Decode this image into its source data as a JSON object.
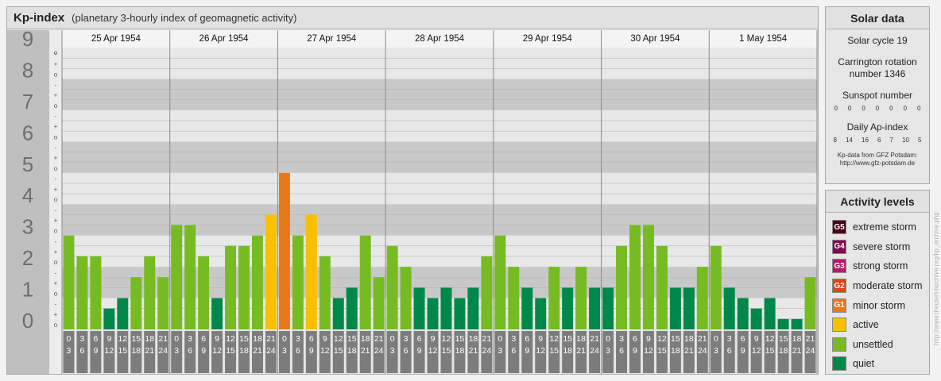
{
  "header": {
    "title": "Kp-index",
    "subtitle": "(planetary 3-hourly index of geomagnetic activity)"
  },
  "chart_data": {
    "type": "bar",
    "title": "Kp-index",
    "subtitle": "(planetary 3-hourly index of geomagnetic activity)",
    "ylim": [
      0,
      9
    ],
    "y_ticks": [
      "0",
      "1",
      "2",
      "3",
      "4",
      "5",
      "6",
      "7",
      "8",
      "9"
    ],
    "minor_labels": [
      "o",
      "+",
      "-"
    ],
    "days": [
      "25 Apr 1954",
      "26 Apr 1954",
      "27 Apr 1954",
      "28 Apr 1954",
      "29 Apr 1954",
      "30 Apr 1954",
      "1 May 1954"
    ],
    "intervals_top": [
      "0",
      "3",
      "6",
      "9",
      "12",
      "15",
      "18",
      "21"
    ],
    "intervals_bottom": [
      "3",
      "6",
      "9",
      "12",
      "15",
      "18",
      "21",
      "24"
    ],
    "values": [
      [
        3.0,
        2.333,
        2.333,
        0.667,
        1.0,
        1.667,
        2.333,
        1.667
      ],
      [
        3.333,
        3.333,
        2.333,
        1.0,
        2.667,
        2.667,
        3.0,
        3.667
      ],
      [
        5.0,
        3.0,
        3.667,
        2.333,
        1.0,
        1.333,
        3.0,
        1.667
      ],
      [
        2.667,
        2.0,
        1.333,
        1.0,
        1.333,
        1.0,
        1.333,
        2.333
      ],
      [
        3.0,
        2.0,
        1.333,
        1.0,
        2.0,
        1.333,
        2.0,
        1.333
      ],
      [
        1.333,
        2.667,
        3.333,
        3.333,
        2.667,
        1.333,
        1.333,
        2.0
      ],
      [
        2.667,
        1.333,
        1.0,
        0.667,
        1.0,
        0.333,
        0.333,
        1.667
      ]
    ],
    "colors": {
      "quiet": "#00884a",
      "unsettled": "#77bb22",
      "active": "#f8c000",
      "G1": "#e87818",
      "G2": "#d84818",
      "G3": "#b8186a",
      "G4": "#800a50",
      "G5": "#4c0018"
    },
    "grid": true,
    "legend": "right"
  },
  "solar": {
    "title": "Solar data",
    "cycle": "Solar cycle 19",
    "carrington_1": "Carrington rotation",
    "carrington_2": "number 1346",
    "sunspot_title": "Sunspot number",
    "sunspot_values": [
      "0",
      "0",
      "0",
      "0",
      "0",
      "0",
      "0"
    ],
    "ap_title": "Daily Ap-index",
    "ap_values": [
      "8",
      "14",
      "16",
      "6",
      "7",
      "10",
      "5"
    ],
    "credit_1": "Kp-data from GFZ Potsdam:",
    "credit_2": "http://www.gfz-potsdam.de"
  },
  "levels": {
    "title": "Activity levels",
    "items": [
      {
        "badge": "G5",
        "label": "extreme storm",
        "color": "#4c0018"
      },
      {
        "badge": "G4",
        "label": "severe storm",
        "color": "#800a50"
      },
      {
        "badge": "G3",
        "label": "strong storm",
        "color": "#b8186a"
      },
      {
        "badge": "G2",
        "label": "moderate storm",
        "color": "#d84818"
      },
      {
        "badge": "G1",
        "label": "minor storm",
        "color": "#e87818"
      },
      {
        "badge": "",
        "label": "active",
        "color": "#f8c000"
      },
      {
        "badge": "",
        "label": "unsettled",
        "color": "#77bb22"
      },
      {
        "badge": "",
        "label": "quiet",
        "color": "#00884a"
      }
    ]
  },
  "watermark": "http://www.theusefularchive.org/kp_archive.php"
}
